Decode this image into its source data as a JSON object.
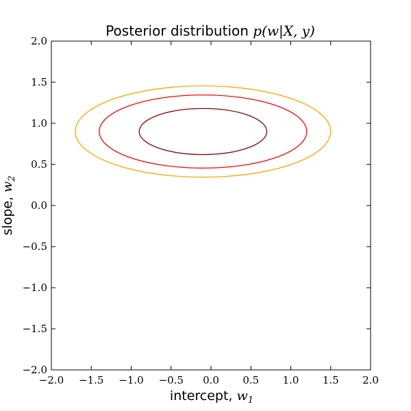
{
  "chart_data": {
    "type": "contour",
    "title": {
      "text": "Posterior distribution ",
      "math": "p(w|X, y)"
    },
    "xlabel": {
      "text": "intercept, ",
      "math": "w",
      "sub": "1"
    },
    "ylabel": {
      "text": "slope, ",
      "math": "w",
      "sub": "2"
    },
    "xlim": [
      -2.0,
      2.0
    ],
    "ylim": [
      -2.0,
      2.0
    ],
    "xticks": [
      -2.0,
      -1.5,
      -1.0,
      -0.5,
      0.0,
      0.5,
      1.0,
      1.5,
      2.0
    ],
    "yticks": [
      -2.0,
      -1.5,
      -1.0,
      -0.5,
      0.0,
      0.5,
      1.0,
      1.5,
      2.0
    ],
    "xtick_labels": [
      "−2.0",
      "−1.5",
      "−1.0",
      "−0.5",
      "0.0",
      "0.5",
      "1.0",
      "1.5",
      "2.0"
    ],
    "ytick_labels": [
      "−2.0",
      "−1.5",
      "−1.0",
      "−0.5",
      "0.0",
      "0.5",
      "1.0",
      "1.5",
      "2.0"
    ],
    "grid": false,
    "contours": [
      {
        "center": [
          -0.1,
          0.9
        ],
        "semi_axes": [
          1.6,
          0.555
        ],
        "color": "#ffa500"
      },
      {
        "center": [
          -0.1,
          0.9
        ],
        "semi_axes": [
          1.3,
          0.445
        ],
        "color": "#ff0000"
      },
      {
        "center": [
          -0.1,
          0.9
        ],
        "semi_axes": [
          0.8,
          0.28
        ],
        "color": "#8b0000"
      }
    ]
  }
}
